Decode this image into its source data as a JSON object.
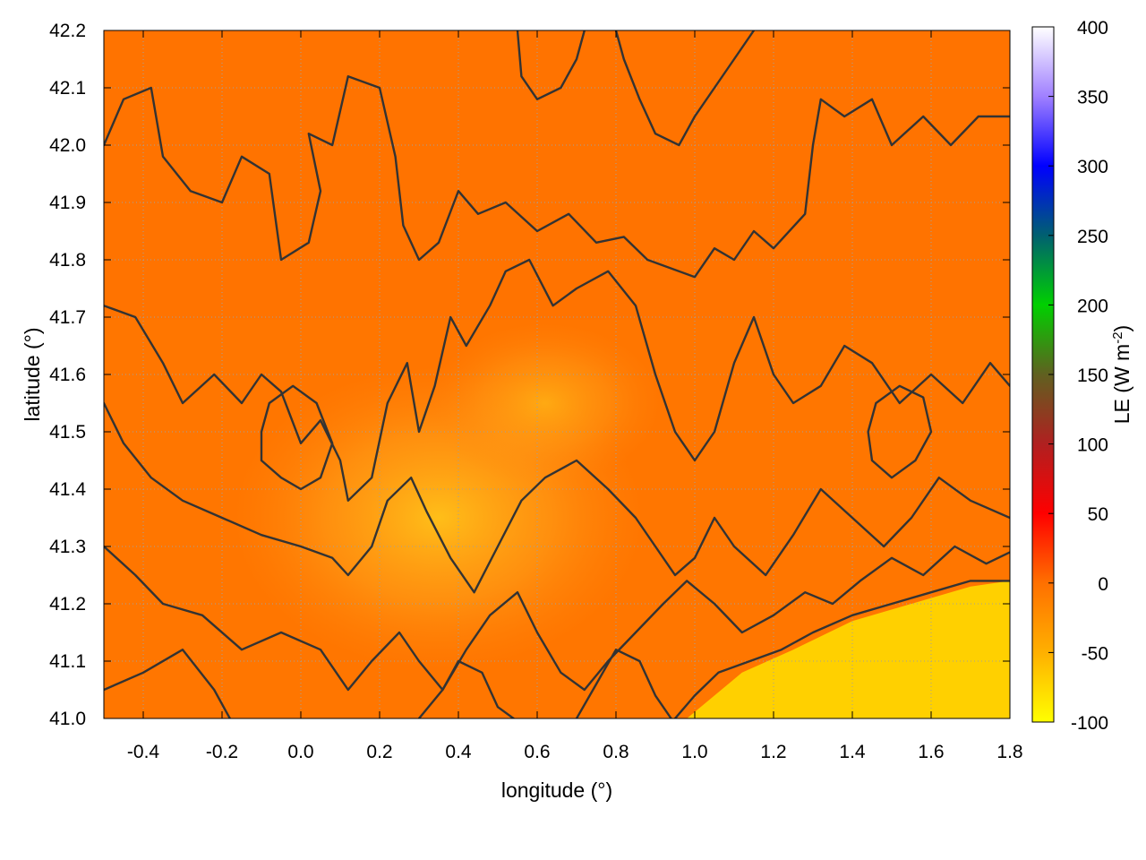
{
  "chart_data": {
    "type": "heatmap",
    "title": "",
    "xlabel": "longitude (°)",
    "ylabel": "latitude (°)",
    "xlim": [
      -0.5,
      1.8
    ],
    "ylim": [
      41.0,
      42.2
    ],
    "x_ticks": [
      -0.4,
      -0.2,
      0.0,
      0.2,
      0.4,
      0.6,
      0.8,
      1.0,
      1.2,
      1.4,
      1.6,
      1.8
    ],
    "x_tick_labels": [
      "-0.4",
      "-0.2",
      "0.0",
      "0.2",
      "0.4",
      "0.6",
      "0.8",
      "1.0",
      "1.2",
      "1.4",
      "1.6",
      "1.8"
    ],
    "y_ticks": [
      41.0,
      41.1,
      41.2,
      41.3,
      41.4,
      41.5,
      41.6,
      41.7,
      41.8,
      41.9,
      42.0,
      42.1,
      42.2
    ],
    "y_tick_labels": [
      "41.0",
      "41.1",
      "41.2",
      "41.3",
      "41.4",
      "41.5",
      "41.6",
      "41.7",
      "41.8",
      "41.9",
      "42.0",
      "42.1",
      "42.2"
    ],
    "grid": true,
    "colorbar": {
      "label_main": "LE (W m",
      "label_exp": "-2",
      "label_close": ")",
      "range": [
        -100,
        400
      ],
      "ticks": [
        -100,
        -50,
        0,
        50,
        100,
        150,
        200,
        250,
        300,
        350,
        400
      ],
      "tick_labels": [
        "-100",
        "-50",
        "0",
        "50",
        "100",
        "150",
        "200",
        "250",
        "300",
        "350",
        "400"
      ],
      "stops": [
        {
          "value": -100,
          "color": "#ffff00"
        },
        {
          "value": -50,
          "color": "#ffb000"
        },
        {
          "value": 0,
          "color": "#ff7000"
        },
        {
          "value": 50,
          "color": "#ff0000"
        },
        {
          "value": 100,
          "color": "#b02020"
        },
        {
          "value": 150,
          "color": "#606020"
        },
        {
          "value": 200,
          "color": "#00d000"
        },
        {
          "value": 250,
          "color": "#006070"
        },
        {
          "value": 300,
          "color": "#0000ff"
        },
        {
          "value": 350,
          "color": "#a080ff"
        },
        {
          "value": 400,
          "color": "#ffffff"
        }
      ]
    },
    "field_description_values": {
      "background_value": -5,
      "sea_value": -70,
      "coast_line": [
        [
          0.98,
          41.0
        ],
        [
          1.12,
          41.08
        ],
        [
          1.25,
          41.12
        ],
        [
          1.4,
          41.17
        ],
        [
          1.55,
          41.2
        ],
        [
          1.7,
          41.23
        ],
        [
          1.8,
          41.24
        ]
      ],
      "dry_center": {
        "lon": 0.35,
        "lat": 41.35,
        "value": -45
      }
    },
    "contours": [
      [
        [
          -0.5,
          42.0
        ],
        [
          -0.45,
          42.08
        ],
        [
          -0.38,
          42.1
        ],
        [
          -0.35,
          41.98
        ],
        [
          -0.28,
          41.92
        ],
        [
          -0.2,
          41.9
        ],
        [
          -0.15,
          41.98
        ],
        [
          -0.08,
          41.95
        ],
        [
          -0.05,
          41.8
        ],
        [
          0.02,
          41.83
        ],
        [
          0.05,
          41.92
        ],
        [
          0.02,
          42.02
        ],
        [
          0.08,
          42.0
        ],
        [
          0.12,
          42.12
        ],
        [
          0.2,
          42.1
        ],
        [
          0.24,
          41.98
        ],
        [
          0.26,
          41.86
        ],
        [
          0.3,
          41.8
        ],
        [
          0.35,
          41.83
        ],
        [
          0.4,
          41.92
        ],
        [
          0.45,
          41.88
        ],
        [
          0.52,
          41.9
        ],
        [
          0.6,
          41.85
        ],
        [
          0.68,
          41.88
        ],
        [
          0.75,
          41.83
        ],
        [
          0.82,
          41.84
        ],
        [
          0.88,
          41.8
        ],
        [
          1.0,
          41.77
        ],
        [
          1.05,
          41.82
        ],
        [
          1.1,
          41.8
        ],
        [
          1.15,
          41.85
        ],
        [
          1.2,
          41.82
        ],
        [
          1.28,
          41.88
        ],
        [
          1.3,
          42.0
        ],
        [
          1.32,
          42.08
        ],
        [
          1.38,
          42.05
        ],
        [
          1.45,
          42.08
        ],
        [
          1.5,
          42.0
        ],
        [
          1.58,
          42.05
        ],
        [
          1.65,
          42.0
        ],
        [
          1.72,
          42.05
        ],
        [
          1.8,
          42.05
        ]
      ],
      [
        [
          -0.5,
          41.72
        ],
        [
          -0.42,
          41.7
        ],
        [
          -0.35,
          41.62
        ],
        [
          -0.3,
          41.55
        ],
        [
          -0.22,
          41.6
        ],
        [
          -0.15,
          41.55
        ],
        [
          -0.1,
          41.6
        ],
        [
          -0.05,
          41.57
        ],
        [
          0.0,
          41.48
        ],
        [
          0.05,
          41.52
        ],
        [
          0.1,
          41.45
        ],
        [
          0.12,
          41.38
        ],
        [
          0.18,
          41.42
        ],
        [
          0.22,
          41.55
        ],
        [
          0.27,
          41.62
        ],
        [
          0.3,
          41.5
        ],
        [
          0.34,
          41.58
        ],
        [
          0.38,
          41.7
        ],
        [
          0.42,
          41.65
        ],
        [
          0.48,
          41.72
        ],
        [
          0.52,
          41.78
        ],
        [
          0.58,
          41.8
        ],
        [
          0.64,
          41.72
        ],
        [
          0.7,
          41.75
        ],
        [
          0.78,
          41.78
        ],
        [
          0.85,
          41.72
        ],
        [
          0.9,
          41.6
        ],
        [
          0.95,
          41.5
        ],
        [
          1.0,
          41.45
        ],
        [
          1.05,
          41.5
        ],
        [
          1.1,
          41.62
        ],
        [
          1.15,
          41.7
        ],
        [
          1.2,
          41.6
        ],
        [
          1.25,
          41.55
        ],
        [
          1.32,
          41.58
        ],
        [
          1.38,
          41.65
        ],
        [
          1.45,
          41.62
        ],
        [
          1.52,
          41.55
        ],
        [
          1.6,
          41.6
        ],
        [
          1.68,
          41.55
        ],
        [
          1.75,
          41.62
        ],
        [
          1.8,
          41.58
        ]
      ],
      [
        [
          -0.5,
          41.55
        ],
        [
          -0.45,
          41.48
        ],
        [
          -0.38,
          41.42
        ],
        [
          -0.3,
          41.38
        ],
        [
          -0.2,
          41.35
        ],
        [
          -0.1,
          41.32
        ],
        [
          0.0,
          41.3
        ],
        [
          0.08,
          41.28
        ],
        [
          0.12,
          41.25
        ],
        [
          0.18,
          41.3
        ],
        [
          0.22,
          41.38
        ],
        [
          0.28,
          41.42
        ],
        [
          0.32,
          41.36
        ],
        [
          0.38,
          41.28
        ],
        [
          0.44,
          41.22
        ],
        [
          0.5,
          41.3
        ],
        [
          0.56,
          41.38
        ],
        [
          0.62,
          41.42
        ],
        [
          0.7,
          41.45
        ],
        [
          0.78,
          41.4
        ],
        [
          0.85,
          41.35
        ],
        [
          0.9,
          41.3
        ],
        [
          0.95,
          41.25
        ],
        [
          1.0,
          41.28
        ],
        [
          1.05,
          41.35
        ],
        [
          1.1,
          41.3
        ],
        [
          1.18,
          41.25
        ],
        [
          1.25,
          41.32
        ],
        [
          1.32,
          41.4
        ],
        [
          1.4,
          41.35
        ],
        [
          1.48,
          41.3
        ],
        [
          1.55,
          41.35
        ],
        [
          1.62,
          41.42
        ],
        [
          1.7,
          41.38
        ],
        [
          1.8,
          41.35
        ]
      ],
      [
        [
          -0.5,
          41.3
        ],
        [
          -0.42,
          41.25
        ],
        [
          -0.35,
          41.2
        ],
        [
          -0.25,
          41.18
        ],
        [
          -0.15,
          41.12
        ],
        [
          -0.05,
          41.15
        ],
        [
          0.05,
          41.12
        ],
        [
          0.12,
          41.05
        ],
        [
          0.18,
          41.1
        ],
        [
          0.25,
          41.15
        ],
        [
          0.3,
          41.1
        ],
        [
          0.36,
          41.05
        ],
        [
          0.42,
          41.12
        ],
        [
          0.48,
          41.18
        ],
        [
          0.55,
          41.22
        ],
        [
          0.6,
          41.15
        ],
        [
          0.66,
          41.08
        ],
        [
          0.72,
          41.05
        ],
        [
          0.78,
          41.1
        ],
        [
          0.85,
          41.15
        ],
        [
          0.92,
          41.2
        ],
        [
          0.98,
          41.24
        ],
        [
          1.05,
          41.2
        ],
        [
          1.12,
          41.15
        ],
        [
          1.2,
          41.18
        ],
        [
          1.28,
          41.22
        ],
        [
          1.35,
          41.2
        ],
        [
          1.42,
          41.24
        ],
        [
          1.5,
          41.28
        ],
        [
          1.58,
          41.25
        ],
        [
          1.66,
          41.3
        ],
        [
          1.74,
          41.27
        ],
        [
          1.8,
          41.29
        ]
      ],
      [
        [
          -0.5,
          41.05
        ],
        [
          -0.4,
          41.08
        ],
        [
          -0.3,
          41.12
        ],
        [
          -0.22,
          41.05
        ],
        [
          -0.18,
          41.0
        ]
      ],
      [
        [
          0.3,
          41.0
        ],
        [
          0.36,
          41.05
        ],
        [
          0.4,
          41.1
        ],
        [
          0.46,
          41.08
        ],
        [
          0.5,
          41.02
        ],
        [
          0.54,
          41.0
        ]
      ],
      [
        [
          0.7,
          41.0
        ],
        [
          0.75,
          41.06
        ],
        [
          0.8,
          41.12
        ],
        [
          0.86,
          41.1
        ],
        [
          0.9,
          41.04
        ],
        [
          0.94,
          41.0
        ]
      ],
      [
        [
          0.95,
          41.0
        ],
        [
          1.0,
          41.04
        ],
        [
          1.06,
          41.08
        ],
        [
          1.14,
          41.1
        ],
        [
          1.22,
          41.12
        ],
        [
          1.3,
          41.15
        ],
        [
          1.4,
          41.18
        ],
        [
          1.5,
          41.2
        ],
        [
          1.6,
          41.22
        ],
        [
          1.7,
          41.24
        ],
        [
          1.8,
          41.24
        ]
      ],
      [
        [
          0.8,
          42.2
        ],
        [
          0.82,
          42.15
        ],
        [
          0.86,
          42.08
        ],
        [
          0.9,
          42.02
        ],
        [
          0.96,
          42.0
        ],
        [
          1.0,
          42.05
        ],
        [
          1.05,
          42.1
        ],
        [
          1.1,
          42.15
        ],
        [
          1.15,
          42.2
        ]
      ],
      [
        [
          0.55,
          42.2
        ],
        [
          0.56,
          42.12
        ],
        [
          0.6,
          42.08
        ],
        [
          0.66,
          42.1
        ],
        [
          0.7,
          42.15
        ],
        [
          0.72,
          42.2
        ]
      ],
      [
        [
          -0.1,
          41.45
        ],
        [
          -0.05,
          41.42
        ],
        [
          0.0,
          41.4
        ],
        [
          0.05,
          41.42
        ],
        [
          0.08,
          41.48
        ],
        [
          0.04,
          41.55
        ],
        [
          -0.02,
          41.58
        ],
        [
          -0.08,
          41.55
        ],
        [
          -0.1,
          41.5
        ],
        [
          -0.1,
          41.45
        ]
      ],
      [
        [
          1.45,
          41.45
        ],
        [
          1.5,
          41.42
        ],
        [
          1.56,
          41.45
        ],
        [
          1.6,
          41.5
        ],
        [
          1.58,
          41.56
        ],
        [
          1.52,
          41.58
        ],
        [
          1.46,
          41.55
        ],
        [
          1.44,
          41.5
        ],
        [
          1.45,
          41.45
        ]
      ]
    ]
  }
}
